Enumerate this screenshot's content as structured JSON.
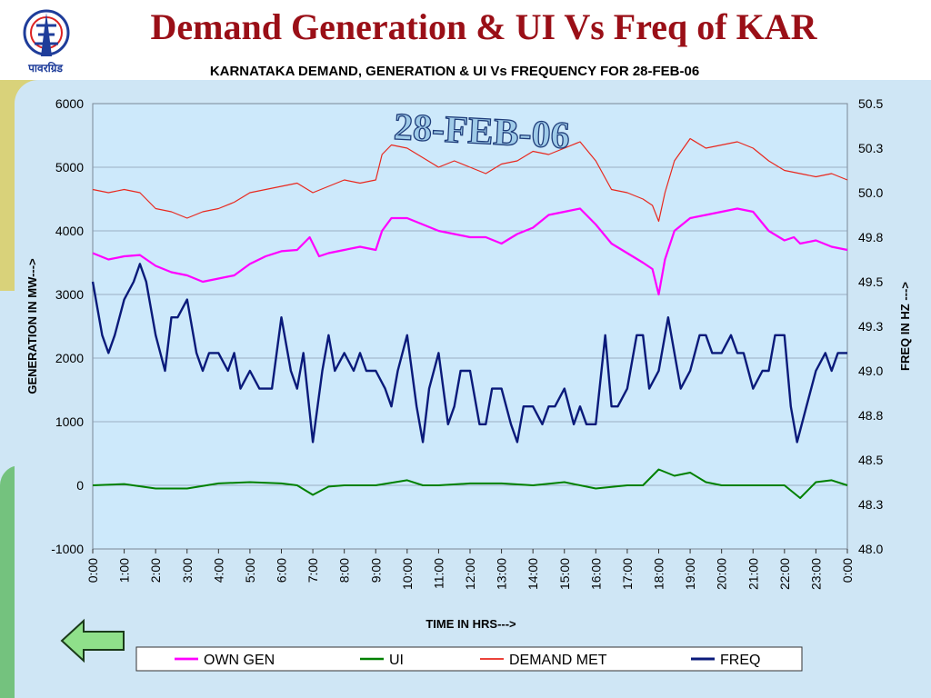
{
  "slide": {
    "title": "Demand Generation & UI Vs Freq of KAR",
    "logo_text": "पावरग्रिड"
  },
  "colors": {
    "title": "#9a0f17",
    "own_gen": "#ff00ff",
    "ui": "#008000",
    "demand": "#e8281e",
    "freq": "#0a1a7a",
    "plot_bg": "#cde9fb",
    "grid": "#8a9cb0"
  },
  "chart_data": {
    "type": "line",
    "title": "KARNATAKA  DEMAND, GENERATION & UI Vs FREQUENCY FOR 28-FEB-06",
    "watermark": "28-FEB-06",
    "xlabel": "TIME IN HRS--->",
    "ylabel_left": "GENERATION IN MW--->",
    "ylabel_right": "FREQ IN HZ --->",
    "x_ticks": [
      "0:00",
      "1:00",
      "2:00",
      "3:00",
      "4:00",
      "5:00",
      "6:00",
      "7:00",
      "8:00",
      "9:00",
      "10:00",
      "11:00",
      "12:00",
      "13:00",
      "14:00",
      "15:00",
      "16:00",
      "17:00",
      "18:00",
      "19:00",
      "20:00",
      "21:00",
      "22:00",
      "23:00",
      "0:00"
    ],
    "ylim_left": [
      -1000,
      6000
    ],
    "yticks_left": [
      "-1000",
      "0",
      "1000",
      "2000",
      "3000",
      "4000",
      "5000",
      "6000"
    ],
    "ylim_right": [
      48.0,
      50.5
    ],
    "yticks_right": [
      "48.0",
      "48.3",
      "48.5",
      "48.8",
      "49.0",
      "49.3",
      "49.5",
      "49.8",
      "50.0",
      "50.3",
      "50.5"
    ],
    "legend_position": "bottom",
    "grid": "horizontal",
    "series": [
      {
        "name": "OWN GEN",
        "axis": "left",
        "x": [
          0,
          0.5,
          1,
          1.5,
          2,
          2.5,
          3,
          3.5,
          4,
          4.5,
          5,
          5.5,
          6,
          6.5,
          6.9,
          7.2,
          7.5,
          8,
          8.5,
          9,
          9.2,
          9.5,
          10,
          10.5,
          11,
          11.5,
          12,
          12.5,
          13,
          13.5,
          14,
          14.5,
          15,
          15.5,
          16,
          16.5,
          17,
          17.5,
          17.8,
          18,
          18.2,
          18.5,
          19,
          19.5,
          20,
          20.5,
          21,
          21.5,
          22,
          22.3,
          22.5,
          23,
          23.5,
          24
        ],
        "y": [
          3650,
          3550,
          3600,
          3620,
          3450,
          3350,
          3300,
          3200,
          3250,
          3300,
          3480,
          3600,
          3680,
          3700,
          3900,
          3600,
          3650,
          3700,
          3750,
          3700,
          4000,
          4200,
          4200,
          4100,
          4000,
          3950,
          3900,
          3900,
          3800,
          3950,
          4050,
          4250,
          4300,
          4350,
          4100,
          3800,
          3650,
          3500,
          3400,
          3000,
          3550,
          4000,
          4200,
          4250,
          4300,
          4350,
          4300,
          4000,
          3850,
          3900,
          3800,
          3850,
          3750,
          3700
        ]
      },
      {
        "name": "UI",
        "axis": "left",
        "x": [
          0,
          1,
          2,
          3,
          4,
          5,
          6,
          6.5,
          7,
          7.5,
          8,
          9,
          10,
          10.5,
          11,
          12,
          13,
          14,
          15,
          16,
          17,
          17.5,
          18,
          18.5,
          19,
          19.5,
          20,
          21,
          22,
          22.5,
          23,
          23.5,
          24
        ],
        "y": [
          0,
          20,
          -50,
          -50,
          30,
          50,
          30,
          0,
          -150,
          -20,
          0,
          0,
          80,
          0,
          0,
          30,
          30,
          0,
          50,
          -50,
          0,
          0,
          250,
          150,
          200,
          50,
          0,
          0,
          0,
          -200,
          50,
          80,
          0
        ]
      },
      {
        "name": "DEMAND MET",
        "axis": "left",
        "x": [
          0,
          0.5,
          1,
          1.5,
          2,
          2.5,
          3,
          3.5,
          4,
          4.5,
          5,
          5.5,
          6,
          6.5,
          7,
          7.5,
          8,
          8.5,
          9,
          9.2,
          9.5,
          10,
          10.5,
          11,
          11.5,
          12,
          12.5,
          13,
          13.5,
          14,
          14.5,
          15,
          15.5,
          16,
          16.5,
          17,
          17.5,
          17.8,
          18,
          18.2,
          18.5,
          19,
          19.5,
          20,
          20.5,
          21,
          21.5,
          22,
          22.5,
          23,
          23.5,
          24
        ],
        "y": [
          4650,
          4600,
          4650,
          4600,
          4350,
          4300,
          4200,
          4300,
          4350,
          4450,
          4600,
          4650,
          4700,
          4750,
          4600,
          4700,
          4800,
          4750,
          4800,
          5200,
          5350,
          5300,
          5150,
          5000,
          5100,
          5000,
          4900,
          5050,
          5100,
          5250,
          5200,
          5300,
          5400,
          5100,
          4650,
          4600,
          4500,
          4400,
          4150,
          4600,
          5100,
          5450,
          5300,
          5350,
          5400,
          5300,
          5100,
          4950,
          4900,
          4850,
          4900,
          4800
        ]
      },
      {
        "name": "FREQ",
        "axis": "right",
        "x": [
          0,
          0.3,
          0.5,
          0.7,
          1,
          1.3,
          1.5,
          1.7,
          2,
          2.3,
          2.5,
          2.7,
          3,
          3.3,
          3.5,
          3.7,
          4,
          4.3,
          4.5,
          4.7,
          5,
          5.3,
          5.5,
          5.7,
          6,
          6.3,
          6.5,
          6.7,
          7,
          7.3,
          7.5,
          7.7,
          8,
          8.3,
          8.5,
          8.7,
          9,
          9.3,
          9.5,
          9.7,
          10,
          10.3,
          10.5,
          10.7,
          11,
          11.3,
          11.5,
          11.7,
          12,
          12.3,
          12.5,
          12.7,
          13,
          13.3,
          13.5,
          13.7,
          14,
          14.3,
          14.5,
          14.7,
          15,
          15.3,
          15.5,
          15.7,
          16,
          16.3,
          16.5,
          16.7,
          17,
          17.3,
          17.5,
          17.7,
          18,
          18.3,
          18.5,
          18.7,
          19,
          19.3,
          19.5,
          19.7,
          20,
          20.3,
          20.5,
          20.7,
          21,
          21.3,
          21.5,
          21.7,
          22,
          22.2,
          22.4,
          22.7,
          23,
          23.3,
          23.5,
          23.7,
          24
        ],
        "y": [
          49.5,
          49.2,
          49.1,
          49.2,
          49.4,
          49.5,
          49.6,
          49.5,
          49.2,
          49.0,
          49.3,
          49.3,
          49.4,
          49.1,
          49.0,
          49.1,
          49.1,
          49.0,
          49.1,
          48.9,
          49.0,
          48.9,
          48.9,
          48.9,
          49.3,
          49.0,
          48.9,
          49.1,
          48.6,
          49.0,
          49.2,
          49.0,
          49.1,
          49.0,
          49.1,
          49.0,
          49.0,
          48.9,
          48.8,
          49.0,
          49.2,
          48.8,
          48.6,
          48.9,
          49.1,
          48.7,
          48.8,
          49.0,
          49.0,
          48.7,
          48.7,
          48.9,
          48.9,
          48.7,
          48.6,
          48.8,
          48.8,
          48.7,
          48.8,
          48.8,
          48.9,
          48.7,
          48.8,
          48.7,
          48.7,
          49.2,
          48.8,
          48.8,
          48.9,
          49.2,
          49.2,
          48.9,
          49.0,
          49.3,
          49.1,
          48.9,
          49.0,
          49.2,
          49.2,
          49.1,
          49.1,
          49.2,
          49.1,
          49.1,
          48.9,
          49.0,
          49.0,
          49.2,
          49.2,
          48.8,
          48.6,
          48.8,
          49.0,
          49.1,
          49.0,
          49.1,
          49.1
        ]
      }
    ]
  }
}
